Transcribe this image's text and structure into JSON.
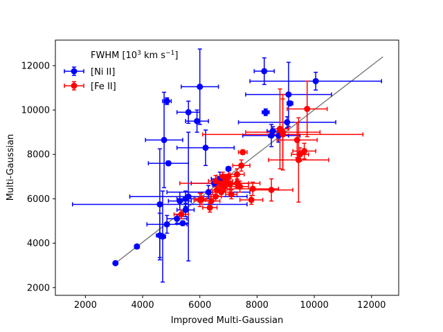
{
  "chart_data": {
    "type": "scatter",
    "xlabel": "Improved Multi-Gaussian",
    "ylabel": "Multi-Gaussian",
    "legend_title": "FWHM [10",
    "legend_title_sup": "3",
    "legend_title_unit": " km s",
    "legend_title_sup2": "−1",
    "legend_title_end": "]",
    "legend_position": "top-left",
    "grid": false,
    "xlim": [
      950,
      12950
    ],
    "ylim": [
      1650,
      13150
    ],
    "xticks": [
      2000,
      4000,
      6000,
      8000,
      10000,
      12000
    ],
    "yticks": [
      2000,
      4000,
      6000,
      8000,
      10000,
      12000
    ],
    "reference_line": {
      "x": [
        3050,
        12400
      ],
      "y": [
        3100,
        12400
      ],
      "color": "#808080"
    },
    "series": [
      {
        "name": "[Ni II]",
        "color": "#0000ff",
        "points": [
          {
            "x": 3050,
            "y": 3100
          },
          {
            "x": 3800,
            "y": 3850,
            "ex": 80,
            "ey": 80
          },
          {
            "x": 4600,
            "y": 4350,
            "ex": 120,
            "ey": 1000
          },
          {
            "x": 4700,
            "y": 4300,
            "ex": 100,
            "ey": 2050
          },
          {
            "x": 4600,
            "y": 5750,
            "ex": 3050,
            "ey": 2500
          },
          {
            "x": 4850,
            "y": 4850,
            "ex": 700,
            "ey": 400
          },
          {
            "x": 4750,
            "y": 8650,
            "ex": 650,
            "ey": 2150
          },
          {
            "x": 4850,
            "y": 10400,
            "ex": 150,
            "ey": 150
          },
          {
            "x": 4900,
            "y": 7600,
            "ex": 700,
            "ey": 100
          },
          {
            "x": 5200,
            "y": 5100,
            "ex": 350,
            "ey": 200
          },
          {
            "x": 5300,
            "y": 5900,
            "ex": 400,
            "ey": 400
          },
          {
            "x": 5400,
            "y": 4900,
            "ex": 200,
            "ey": 100
          },
          {
            "x": 5500,
            "y": 6000,
            "ex": 300,
            "ey": 350
          },
          {
            "x": 5500,
            "y": 5500,
            "ex": 300,
            "ey": 300
          },
          {
            "x": 5600,
            "y": 6100,
            "ex": 2050,
            "ey": 2900
          },
          {
            "x": 5600,
            "y": 9900,
            "ex": 400,
            "ey": 500
          },
          {
            "x": 5900,
            "y": 9500,
            "ex": 400,
            "ey": 500
          },
          {
            "x": 6000,
            "y": 11050,
            "ex": 650,
            "ey": 1700
          },
          {
            "x": 6200,
            "y": 8300,
            "ex": 1000,
            "ey": 800
          },
          {
            "x": 6300,
            "y": 6300,
            "ex": 1450,
            "ey": 300
          },
          {
            "x": 6500,
            "y": 6700,
            "ex": 800,
            "ey": 150
          },
          {
            "x": 6700,
            "y": 6900,
            "ex": 300,
            "ey": 300
          },
          {
            "x": 7000,
            "y": 7350,
            "ex": 80,
            "ey": 80
          },
          {
            "x": 8250,
            "y": 11750,
            "ex": 350,
            "ey": 600
          },
          {
            "x": 8300,
            "y": 9900,
            "ex": 120,
            "ey": 150
          },
          {
            "x": 8500,
            "y": 8850,
            "ex": 1000,
            "ey": 500
          },
          {
            "x": 8550,
            "y": 9050,
            "ex": 200,
            "ey": 200
          },
          {
            "x": 8750,
            "y": 8850,
            "ex": 350,
            "ey": 300
          },
          {
            "x": 9050,
            "y": 9450,
            "ex": 1700,
            "ey": 250
          },
          {
            "x": 9100,
            "y": 10700,
            "ex": 1500,
            "ey": 1450
          },
          {
            "x": 9150,
            "y": 10300,
            "ex": 100,
            "ey": 100
          },
          {
            "x": 10050,
            "y": 11300,
            "ex": 2300,
            "ey": 400
          }
        ]
      },
      {
        "name": "[Fe II]",
        "color": "#ff0000",
        "points": [
          {
            "x": 5350,
            "y": 5300,
            "ex": 250,
            "ey": 200
          },
          {
            "x": 6000,
            "y": 5950,
            "ex": 200,
            "ey": 300
          },
          {
            "x": 6050,
            "y": 6000,
            "ex": 200,
            "ey": 250
          },
          {
            "x": 6350,
            "y": 5600,
            "ex": 250,
            "ey": 200
          },
          {
            "x": 6400,
            "y": 5900,
            "ex": 300,
            "ey": 300
          },
          {
            "x": 6550,
            "y": 6100,
            "ex": 200,
            "ey": 200
          },
          {
            "x": 6550,
            "y": 6800,
            "ex": 250,
            "ey": 250
          },
          {
            "x": 6600,
            "y": 6400,
            "ex": 300,
            "ey": 250
          },
          {
            "x": 6700,
            "y": 6700,
            "ex": 1400,
            "ey": 250
          },
          {
            "x": 6750,
            "y": 6300,
            "ex": 300,
            "ey": 200
          },
          {
            "x": 6800,
            "y": 7000,
            "ex": 200,
            "ey": 200
          },
          {
            "x": 6850,
            "y": 6550,
            "ex": 250,
            "ey": 200
          },
          {
            "x": 6900,
            "y": 6800,
            "ex": 250,
            "ey": 300
          },
          {
            "x": 7000,
            "y": 7000,
            "ex": 300,
            "ey": 300
          },
          {
            "x": 7050,
            "y": 6650,
            "ex": 350,
            "ey": 250
          },
          {
            "x": 7100,
            "y": 6200,
            "ex": 200,
            "ey": 200
          },
          {
            "x": 7300,
            "y": 7100,
            "ex": 250,
            "ey": 250
          },
          {
            "x": 7300,
            "y": 6700,
            "ex": 400,
            "ey": 200
          },
          {
            "x": 7400,
            "y": 6550,
            "ex": 300,
            "ey": 250
          },
          {
            "x": 7450,
            "y": 7500,
            "ex": 300,
            "ey": 250
          },
          {
            "x": 7500,
            "y": 8100,
            "ex": 150,
            "ey": 100
          },
          {
            "x": 7800,
            "y": 5950,
            "ex": 400,
            "ey": 200
          },
          {
            "x": 7850,
            "y": 6450,
            "ex": 900,
            "ey": 300
          },
          {
            "x": 8500,
            "y": 6400,
            "ex": 750,
            "ey": 500
          },
          {
            "x": 8800,
            "y": 9150,
            "ex": 300,
            "ey": 1800
          },
          {
            "x": 8900,
            "y": 8900,
            "ex": 2800,
            "ey": 1600
          },
          {
            "x": 8900,
            "y": 9000,
            "ex": 1300,
            "ey": 1700
          },
          {
            "x": 9400,
            "y": 8650,
            "ex": 700,
            "ey": 800
          },
          {
            "x": 9450,
            "y": 7750,
            "ex": 1050,
            "ey": 1900
          },
          {
            "x": 9500,
            "y": 8000,
            "ex": 300,
            "ey": 300
          },
          {
            "x": 9650,
            "y": 8150,
            "ex": 400,
            "ey": 350
          },
          {
            "x": 9750,
            "y": 10050,
            "ex": 700,
            "ey": 1250
          }
        ]
      }
    ]
  }
}
